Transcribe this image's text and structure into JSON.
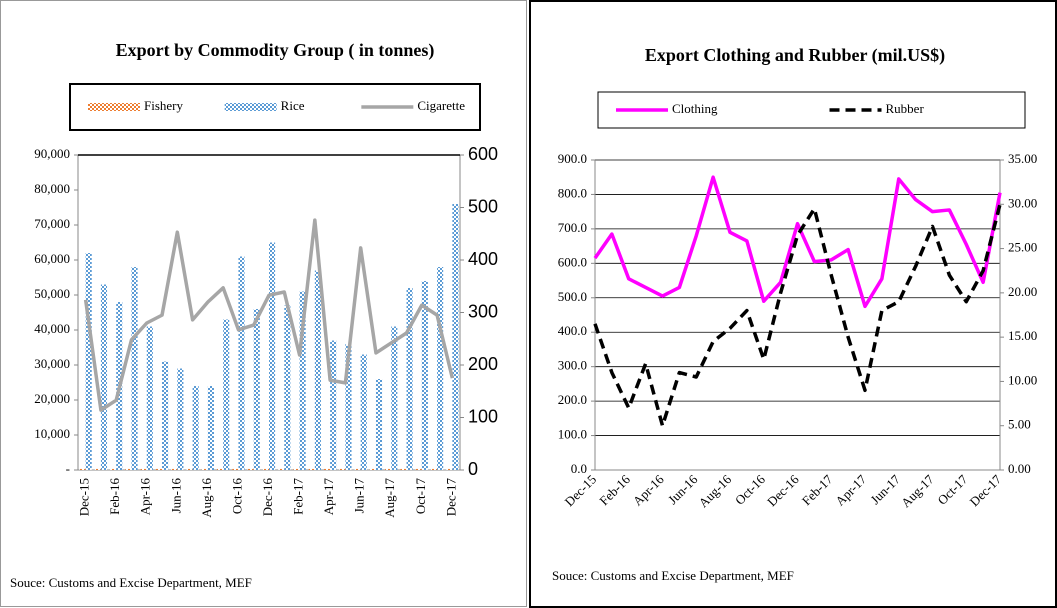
{
  "chart_data": [
    {
      "type": "bar",
      "title": "Export by Commodity Group ( in tonnes)",
      "categories": [
        "Dec-15",
        null,
        "Feb-16",
        null,
        "Apr-16",
        null,
        "Jun-16",
        null,
        "Aug-16",
        null,
        "Oct-16",
        null,
        "Dec-16",
        null,
        "Feb-17",
        null,
        "Apr-17",
        null,
        "Jun-17",
        null,
        "Aug-17",
        null,
        "Oct-17",
        null,
        "Dec-17"
      ],
      "series": [
        {
          "name": "Fishery",
          "color": "#ed7d31",
          "values": [
            300,
            300,
            300,
            300,
            300,
            300,
            300,
            300,
            300,
            300,
            300,
            300,
            300,
            300,
            300,
            300,
            300,
            300,
            300,
            300,
            300,
            300,
            300,
            300,
            300
          ]
        },
        {
          "name": "Rice",
          "color": "#5b9bd5",
          "values": [
            62000,
            53000,
            48000,
            58000,
            41000,
            31000,
            29000,
            24000,
            24000,
            43000,
            61000,
            46000,
            65000,
            47000,
            51000,
            57000,
            37000,
            36000,
            33000,
            26000,
            41000,
            52000,
            54000,
            58000,
            76000
          ]
        },
        {
          "name": "Cigarette",
          "color": "#a6a6a6",
          "type": "line",
          "axis": "y2",
          "values": [
            324,
            114,
            133,
            248,
            280,
            295,
            453,
            286,
            320,
            347,
            267,
            276,
            333,
            339,
            219,
            476,
            171,
            166,
            423,
            223,
            242,
            261,
            314,
            295,
            175
          ]
        }
      ],
      "ylim": [
        0,
        90000
      ],
      "yticks": [
        {
          "value": 0,
          "label": "-"
        },
        {
          "value": 10000,
          "label": "10,000"
        },
        {
          "value": 20000,
          "label": "20,000"
        },
        {
          "value": 30000,
          "label": "30,000"
        },
        {
          "value": 40000,
          "label": "40,000"
        },
        {
          "value": 50000,
          "label": "50,000"
        },
        {
          "value": 60000,
          "label": "60,000"
        },
        {
          "value": 70000,
          "label": "70,000"
        },
        {
          "value": 80000,
          "label": "80,000"
        },
        {
          "value": 90000,
          "label": "90,000"
        }
      ],
      "y2lim": [
        0,
        600
      ],
      "y2ticks": [
        0,
        100,
        200,
        300,
        400,
        500,
        600
      ],
      "grid": false,
      "source": "Souce: Customs and Excise Department, MEF"
    },
    {
      "type": "line",
      "title": "Export Clothing and Rubber (mil.US$)",
      "categories": [
        "Dec-15",
        null,
        "Feb-16",
        null,
        "Apr-16",
        null,
        "Jun-16",
        null,
        "Aug-16",
        null,
        "Oct-16",
        null,
        "Dec-16",
        null,
        "Feb-17",
        null,
        "Apr-17",
        null,
        "Jun-17",
        null,
        "Aug-17",
        null,
        "Oct-17",
        null,
        "Dec-17"
      ],
      "series": [
        {
          "name": "Clothing",
          "color": "#ff00ff",
          "values": [
            615,
            685,
            555,
            530,
            505,
            530,
            680,
            850,
            690,
            665,
            490,
            545,
            715,
            605,
            610,
            640,
            475,
            555,
            845,
            785,
            750,
            755,
            655,
            545,
            805
          ]
        },
        {
          "name": "Rubber",
          "color": "#000000",
          "dashed": true,
          "axis": "y2",
          "values": [
            16.5,
            11,
            7,
            12,
            5,
            11,
            10.5,
            14.5,
            16,
            18,
            12.5,
            20,
            26.5,
            29.5,
            22,
            15,
            9,
            18,
            19,
            23,
            27.5,
            22,
            19,
            22.5,
            30
          ]
        }
      ],
      "ylim": [
        0,
        900
      ],
      "yticks": [
        {
          "value": 0,
          "label": "0.0"
        },
        {
          "value": 100,
          "label": "100.0"
        },
        {
          "value": 200,
          "label": "200.0"
        },
        {
          "value": 300,
          "label": "300.0"
        },
        {
          "value": 400,
          "label": "400.0"
        },
        {
          "value": 500,
          "label": "500.0"
        },
        {
          "value": 600,
          "label": "600.0"
        },
        {
          "value": 700,
          "label": "700.0"
        },
        {
          "value": 800,
          "label": "800.0"
        },
        {
          "value": 900,
          "label": "900.0"
        }
      ],
      "y2lim": [
        0,
        35
      ],
      "y2ticks": [
        {
          "value": 0,
          "label": "0.00"
        },
        {
          "value": 5,
          "label": "5.00"
        },
        {
          "value": 10,
          "label": "10.00"
        },
        {
          "value": 15,
          "label": "15.00"
        },
        {
          "value": 20,
          "label": "20.00"
        },
        {
          "value": 25,
          "label": "25.00"
        },
        {
          "value": 30,
          "label": "30.00"
        },
        {
          "value": 35,
          "label": "35.00"
        }
      ],
      "grid": true,
      "source": "Souce: Customs and Excise Department, MEF"
    }
  ]
}
